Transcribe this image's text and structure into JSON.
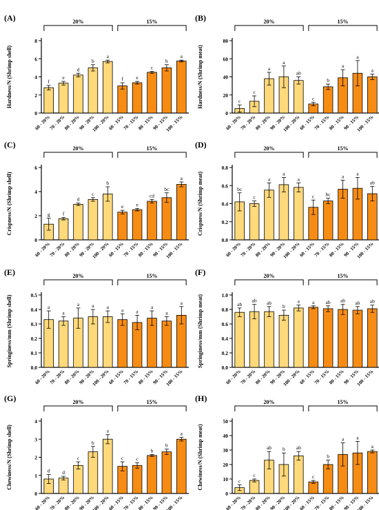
{
  "colors": {
    "light": "#FFD97A",
    "dark": "#F78C14",
    "stroke": "#000000"
  },
  "group_labels": [
    "20%",
    "15%"
  ],
  "chart_data": [
    {
      "type": "bar",
      "panel": "(A)",
      "ylabel": "Hardness/N (Shrimp shell)",
      "categories": [
        "60 - 20%",
        "70 - 20%",
        "80 - 20%",
        "90 - 20%",
        "100 - 20%",
        "60 - 15%",
        "70 - 15%",
        "80 - 15%",
        "90 - 15%",
        "100 - 15%"
      ],
      "ylim": [
        0,
        8
      ],
      "yticks": [
        0,
        2,
        4,
        6,
        8
      ],
      "values": [
        2.8,
        3.3,
        4.2,
        5.0,
        5.7,
        3.0,
        3.35,
        4.5,
        5.0,
        5.75
      ],
      "errors": [
        0.25,
        0.2,
        0.2,
        0.35,
        0.15,
        0.35,
        0.15,
        0.1,
        0.35,
        0.1
      ],
      "letters": [
        "f",
        "e",
        "d",
        "b",
        "a",
        "f",
        "e",
        "c",
        "b",
        "a"
      ]
    },
    {
      "type": "bar",
      "panel": "(B)",
      "ylabel": "Hardness/N (Shrimp meat)",
      "categories": [
        "60 - 20%",
        "70 - 20%",
        "80 - 20%",
        "90 - 20%",
        "100 - 20%",
        "60 - 15%",
        "70 - 15%",
        "80 - 15%",
        "90 - 15%",
        "100 - 15%"
      ],
      "ylim": [
        0,
        80
      ],
      "yticks": [
        0,
        20,
        40,
        60,
        80
      ],
      "values": [
        5,
        13,
        38,
        40,
        36,
        10,
        29,
        39,
        44,
        40
      ],
      "errors": [
        4,
        6,
        7,
        12,
        4,
        2,
        3,
        9,
        14,
        3
      ],
      "letters": [
        "c",
        "c",
        "a",
        "a",
        "ab",
        "c",
        "b",
        "a",
        "a",
        "a"
      ]
    },
    {
      "type": "bar",
      "panel": "(C)",
      "ylabel": "Crispness/N (Shrimp shell)",
      "categories": [
        "60 - 20%",
        "70 - 20%",
        "80 - 20%",
        "90 - 20%",
        "100 - 20%",
        "60 - 15%",
        "70 - 15%",
        "80 - 15%",
        "90 - 15%",
        "100 - 15%"
      ],
      "ylim": [
        0,
        6
      ],
      "yticks": [
        0,
        2,
        4,
        6
      ],
      "values": [
        1.3,
        1.75,
        2.95,
        3.35,
        3.8,
        2.3,
        2.5,
        3.2,
        3.5,
        4.6
      ],
      "errors": [
        0.5,
        0.1,
        0.1,
        0.15,
        0.6,
        0.15,
        0.1,
        0.15,
        0.4,
        0.2
      ],
      "letters": [
        "g",
        "f",
        "d",
        "c",
        "b",
        "e",
        "e",
        "cd",
        "bc",
        "a"
      ]
    },
    {
      "type": "bar",
      "panel": "(D)",
      "ylabel": "Crispness/N (Shrimp meat)",
      "categories": [
        "60 - 20%",
        "70 - 20%",
        "80 - 20%",
        "90 - 20%",
        "100 - 20%",
        "60 - 15%",
        "70 - 15%",
        "80 - 15%",
        "90 - 15%",
        "100 - 15%"
      ],
      "ylim": [
        0,
        0.8
      ],
      "yticks": [
        0.0,
        0.2,
        0.4,
        0.6,
        0.8
      ],
      "values": [
        0.42,
        0.4,
        0.55,
        0.61,
        0.58,
        0.36,
        0.43,
        0.56,
        0.57,
        0.51
      ],
      "errors": [
        0.1,
        0.03,
        0.08,
        0.08,
        0.05,
        0.08,
        0.03,
        0.1,
        0.12,
        0.08
      ],
      "letters": [
        "bc",
        "c",
        "a",
        "a",
        "a",
        "c",
        "bc",
        "a",
        "a",
        "ab"
      ]
    },
    {
      "type": "bar",
      "panel": "(E)",
      "ylabel": "Springiness/mm (Shrimp shell)",
      "categories": [
        "60 - 20%",
        "70 - 20%",
        "80 - 20%",
        "90 - 20%",
        "100 - 20%",
        "60 - 15%",
        "70 - 15%",
        "80 - 15%",
        "90 - 15%",
        "100 - 15%"
      ],
      "ylim": [
        0,
        0.5
      ],
      "yticks": [
        0.0,
        0.1,
        0.2,
        0.3,
        0.4,
        0.5
      ],
      "values": [
        0.33,
        0.32,
        0.34,
        0.35,
        0.35,
        0.33,
        0.31,
        0.34,
        0.32,
        0.36
      ],
      "errors": [
        0.06,
        0.03,
        0.07,
        0.05,
        0.04,
        0.04,
        0.05,
        0.05,
        0.03,
        0.06
      ],
      "letters": [
        "a",
        "a",
        "a",
        "a",
        "a",
        "a",
        "a",
        "a",
        "a",
        "a"
      ]
    },
    {
      "type": "bar",
      "panel": "(F)",
      "ylabel": "Springiness/mm (Shrimp meat)",
      "categories": [
        "60 - 20%",
        "70 - 20%",
        "80 - 20%",
        "90 - 20%",
        "100 - 20%",
        "60 - 15%",
        "70 - 15%",
        "80 - 15%",
        "90 - 15%",
        "100 - 15%"
      ],
      "ylim": [
        0,
        1.0
      ],
      "yticks": [
        0.0,
        0.2,
        0.4,
        0.6,
        0.8,
        1.0
      ],
      "values": [
        0.76,
        0.77,
        0.77,
        0.72,
        0.82,
        0.83,
        0.81,
        0.8,
        0.79,
        0.81
      ],
      "errors": [
        0.06,
        0.1,
        0.07,
        0.07,
        0.04,
        0.02,
        0.04,
        0.07,
        0.05,
        0.05
      ],
      "letters": [
        "ab",
        "ab",
        "ab",
        "b",
        "a",
        "a",
        "ab",
        "ab",
        "ab",
        "ab"
      ]
    },
    {
      "type": "bar",
      "panel": "(G)",
      "ylabel": "Chewiness/N (Shrimp shell)",
      "categories": [
        "60 - 20%",
        "70 - 20%",
        "80 - 20%",
        "90 - 20%",
        "100 - 20%",
        "60 - 15%",
        "70 - 15%",
        "80 - 15%",
        "90 - 15%",
        "100 - 15%"
      ],
      "ylim": [
        0,
        4
      ],
      "yticks": [
        0,
        1,
        2,
        3,
        4
      ],
      "values": [
        0.8,
        0.85,
        1.55,
        2.3,
        3.0,
        1.5,
        1.55,
        2.1,
        2.3,
        3.0
      ],
      "errors": [
        0.25,
        0.1,
        0.2,
        0.3,
        0.25,
        0.25,
        0.15,
        0.05,
        0.15,
        0.1
      ],
      "letters": [
        "d",
        "d",
        "c",
        "b",
        "a",
        "c",
        "c",
        "b",
        "b",
        "a"
      ]
    },
    {
      "type": "bar",
      "panel": "(H)",
      "ylabel": "Chewiness/N (Shrimp meat)",
      "categories": [
        "60 - 20%",
        "70 - 20%",
        "80 - 20%",
        "90 - 20%",
        "100 - 20%",
        "60 - 15%",
        "70 - 15%",
        "80 - 15%",
        "90 - 15%",
        "100 - 15%"
      ],
      "ylim": [
        0,
        50
      ],
      "yticks": [
        0,
        10,
        20,
        30,
        40,
        50
      ],
      "values": [
        4,
        9,
        23,
        20,
        26,
        8,
        20,
        27,
        28,
        29
      ],
      "errors": [
        2,
        1,
        6,
        8,
        3,
        1,
        3,
        8,
        8,
        1
      ],
      "letters": [
        "c",
        "c",
        "ab",
        "b",
        "ab",
        "c",
        "b",
        "a",
        "a",
        "a"
      ]
    }
  ]
}
